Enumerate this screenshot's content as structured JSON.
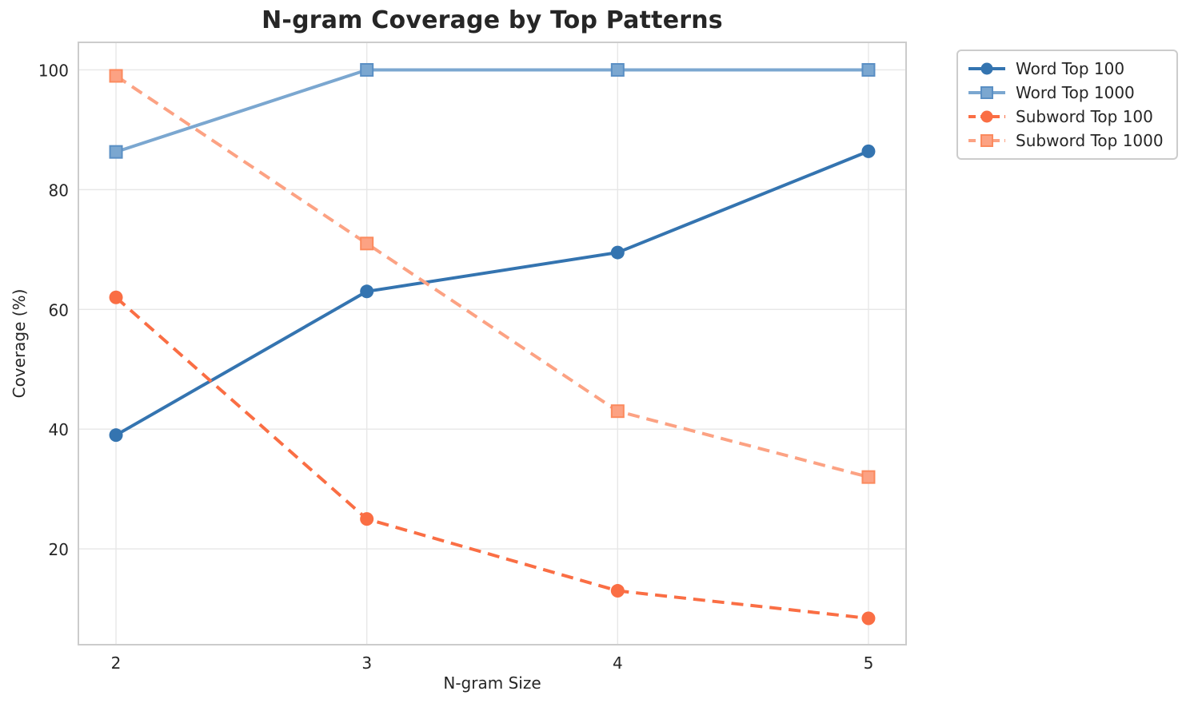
{
  "chart_data": {
    "type": "line",
    "title": "N-gram Coverage by Top Patterns",
    "xlabel": "N-gram Size",
    "ylabel": "Coverage (%)",
    "x": [
      2,
      3,
      4,
      5
    ],
    "xticks": [
      "2",
      "3",
      "4",
      "5"
    ],
    "yticks": [
      20,
      40,
      60,
      80,
      100
    ],
    "xlim": [
      1.85,
      5.15
    ],
    "ylim": [
      4.0,
      104.6
    ],
    "grid": true,
    "legend_position": "outside-top-right",
    "series": [
      {
        "name": "Word Top 100",
        "values": [
          39,
          63,
          69.5,
          86.4
        ],
        "color": "#3474b0",
        "edge": "#3474b0",
        "line_style": "solid",
        "marker": "circle"
      },
      {
        "name": "Word Top 1000",
        "values": [
          86.3,
          100,
          100,
          100
        ],
        "color": "#7ba7d0",
        "edge": "#5a8fc4",
        "line_style": "solid",
        "marker": "square"
      },
      {
        "name": "Subword Top 100",
        "values": [
          62,
          25,
          13,
          8.4
        ],
        "color": "#fa6e44",
        "edge": "#fa6e44",
        "line_style": "dashed",
        "marker": "circle"
      },
      {
        "name": "Subword Top 1000",
        "values": [
          99,
          71,
          43,
          32
        ],
        "color": "#fca283",
        "edge": "#fb8a5e",
        "line_style": "dashed",
        "marker": "square"
      }
    ],
    "style": {
      "grid_color": "#e7e7e7",
      "spine_color": "#cccccc",
      "text_color": "#262626",
      "line_width": 4,
      "dash_pattern": "15 9"
    }
  }
}
